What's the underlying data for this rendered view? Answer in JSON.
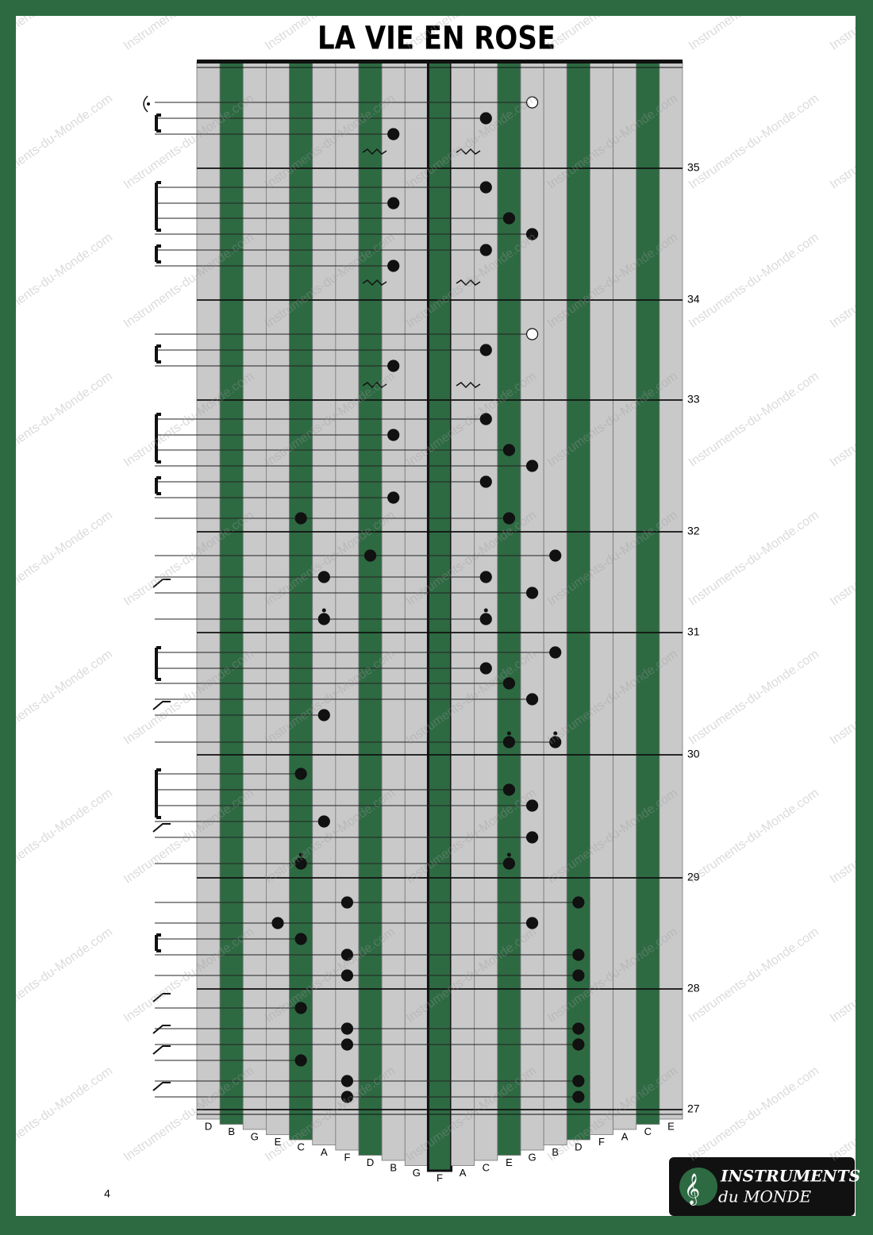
{
  "title": "LA VIE EN ROSE",
  "keys": [
    "D",
    "B",
    "G",
    "E",
    "C",
    "A",
    "F",
    "D",
    "B",
    "G",
    "F",
    "A",
    "C",
    "E",
    "G",
    "B",
    "D",
    "F",
    "A",
    "C",
    "E"
  ],
  "measures": [
    35,
    34,
    33,
    32,
    31,
    30,
    29,
    28,
    27
  ],
  "page_number": 4,
  "logo": {
    "line1": "INSTRUMENTS",
    "line2": "du MONDE"
  },
  "watermark": "Instruments-du-Monde.com"
}
